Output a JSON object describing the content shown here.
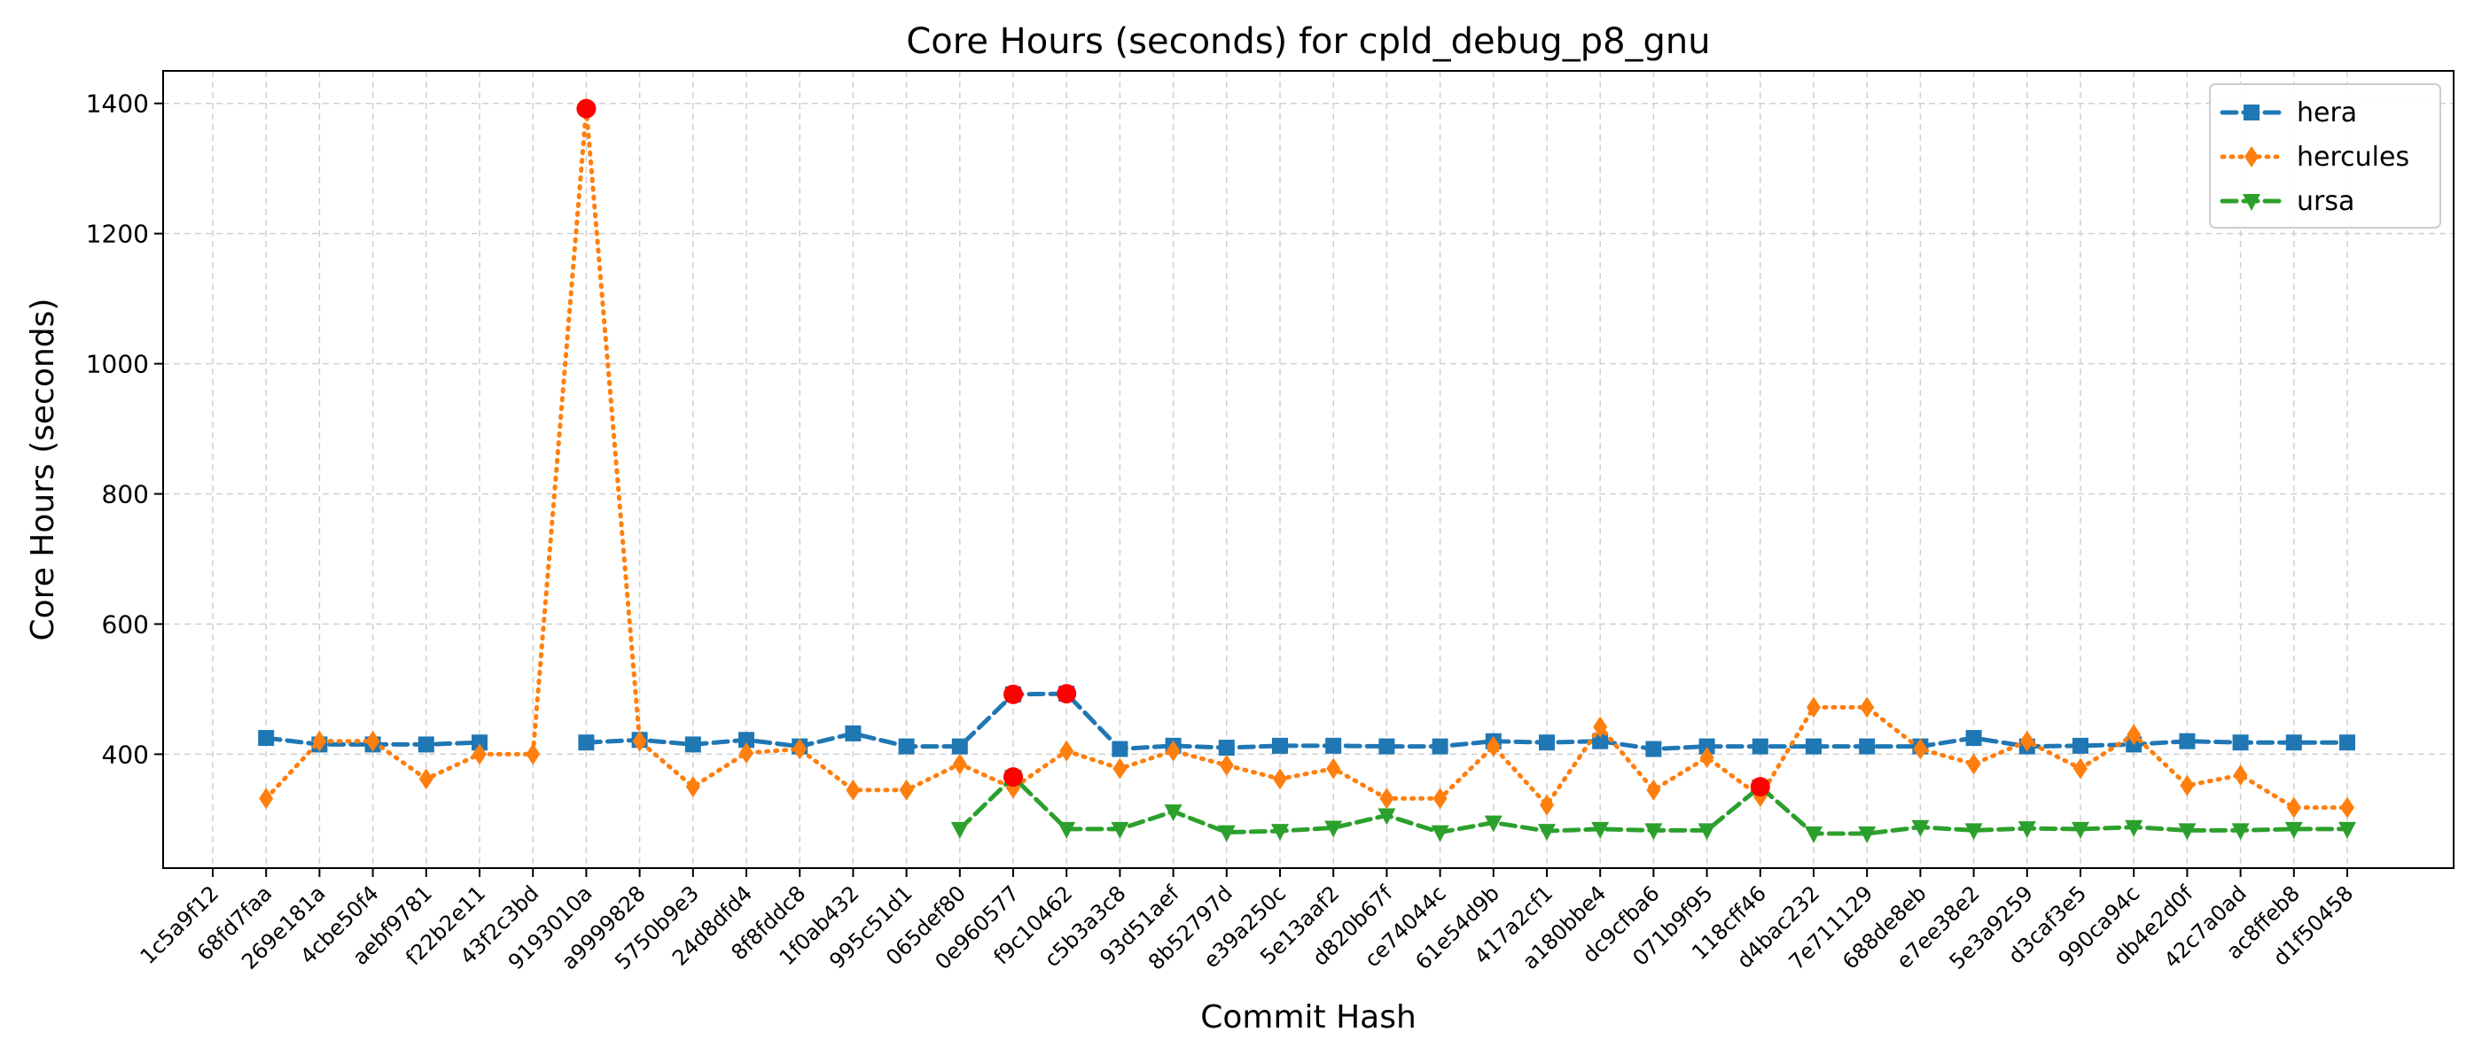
{
  "chart_data": {
    "type": "line",
    "title": "Core Hours (seconds) for cpld_debug_p8_gnu",
    "xlabel": "Commit Hash",
    "ylabel": "Core Hours (seconds)",
    "ylim": [
      225,
      1450
    ],
    "yticks": [
      400,
      600,
      800,
      1000,
      1200,
      1400
    ],
    "grid": true,
    "legend_position": "top-right",
    "categories": [
      "1c5a9f12",
      "68fd7faa",
      "269e181a",
      "4cbe50f4",
      "aebf9781",
      "f22b2e11",
      "43f2c3bd",
      "9193010a",
      "a9999828",
      "5750b9e3",
      "24d8dfd4",
      "8f8fddc8",
      "1f0ab432",
      "995c51d1",
      "065def80",
      "0e960577",
      "f9c10462",
      "c5b3a3c8",
      "93d51aef",
      "8b52797d",
      "e39a250c",
      "5e13aaf2",
      "d820b67f",
      "ce74044c",
      "61e54d9b",
      "417a2cf1",
      "a180bbe4",
      "dc9cfba6",
      "071b9f95",
      "118cff46",
      "d4bac232",
      "7e711129",
      "688de8eb",
      "e7ee38e2",
      "5e3a9259",
      "d3caf3e5",
      "990ca94c",
      "db4e2d0f",
      "42c7a0ad",
      "ac8ffeb8",
      "d1f50458"
    ],
    "series": [
      {
        "name": "hera",
        "color": "#1f77b4",
        "marker": "square",
        "dash": "dashed",
        "values": [
          null,
          425,
          415,
          415,
          415,
          418,
          null,
          418,
          422,
          415,
          422,
          412,
          432,
          412,
          412,
          492,
          493,
          408,
          413,
          410,
          413,
          413,
          412,
          412,
          420,
          418,
          420,
          408,
          412,
          412,
          412,
          412,
          412,
          425,
          412,
          413,
          415,
          420,
          418,
          418,
          418
        ]
      },
      {
        "name": "hercules",
        "color": "#ff7f0e",
        "marker": "diamond",
        "dash": "dotted",
        "values": [
          null,
          332,
          420,
          420,
          362,
          400,
          400,
          1392,
          420,
          350,
          402,
          408,
          345,
          345,
          385,
          348,
          405,
          378,
          405,
          383,
          362,
          378,
          332,
          332,
          412,
          322,
          442,
          345,
          395,
          335,
          472,
          472,
          408,
          385,
          420,
          378,
          430,
          352,
          368,
          318,
          318
        ]
      },
      {
        "name": "ursa",
        "color": "#2ca02c",
        "marker": "triangle-down",
        "dash": "dashed",
        "values": [
          null,
          null,
          null,
          null,
          null,
          null,
          null,
          null,
          null,
          null,
          null,
          null,
          null,
          null,
          285,
          365,
          285,
          285,
          312,
          280,
          282,
          287,
          306,
          280,
          295,
          282,
          285,
          283,
          283,
          350,
          278,
          278,
          288,
          283,
          286,
          285,
          288,
          283,
          283,
          285,
          285
        ]
      }
    ],
    "highlights": {
      "color": "#ff0000",
      "points": [
        {
          "series": "hercules",
          "category": "9193010a",
          "value": 1392
        },
        {
          "series": "hera",
          "category": "0e960577",
          "value": 492
        },
        {
          "series": "hera",
          "category": "f9c10462",
          "value": 493
        },
        {
          "series": "ursa",
          "category": "0e960577",
          "value": 365
        },
        {
          "series": "ursa",
          "category": "118cff46",
          "value": 350
        }
      ]
    }
  }
}
